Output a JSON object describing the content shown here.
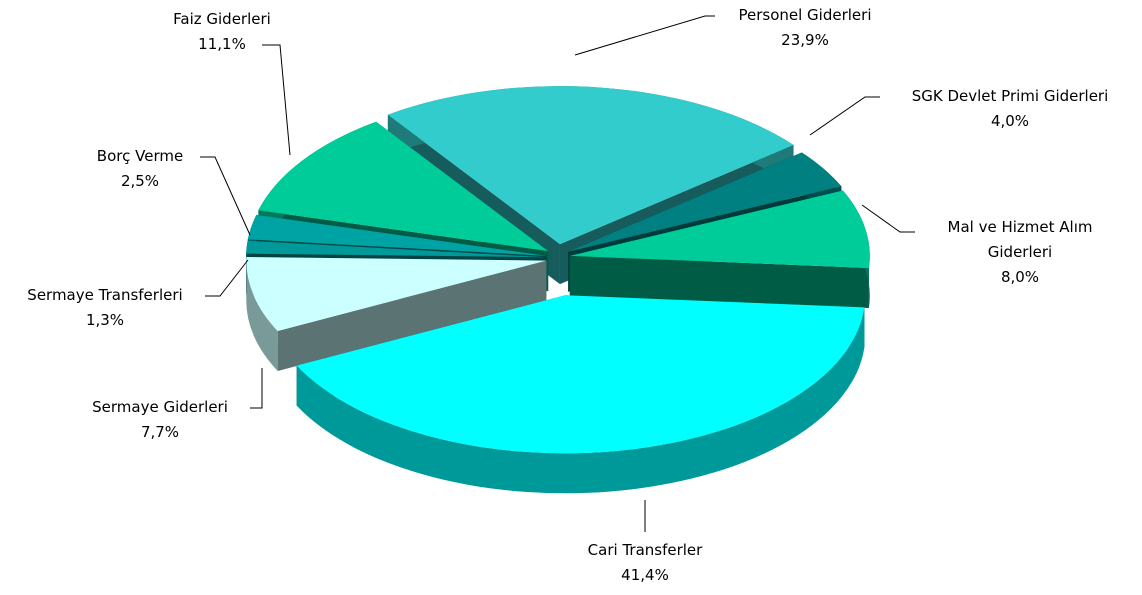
{
  "chart_data": {
    "type": "pie",
    "categories": [
      "Personel Giderleri",
      "SGK Devlet Primi Giderleri",
      "Mal ve Hizmet Alım Giderleri",
      "Cari Transferler",
      "Sermaye Giderleri",
      "Sermaye Transferleri",
      "Borç Verme",
      "Faiz Giderleri"
    ],
    "values": [
      23.9,
      4.0,
      8.0,
      41.4,
      7.7,
      1.3,
      2.5,
      11.1
    ],
    "value_labels": [
      "23,9%",
      "4,0%",
      "8,0%",
      "41,4%",
      "7,7%",
      "1,3%",
      "2,5%",
      "11,1%"
    ],
    "colors": [
      "#33cccc",
      "#008080",
      "#00cc99",
      "#00ffff",
      "#ccffff",
      "#009999",
      "#00a3a3",
      "#00cc99"
    ]
  }
}
